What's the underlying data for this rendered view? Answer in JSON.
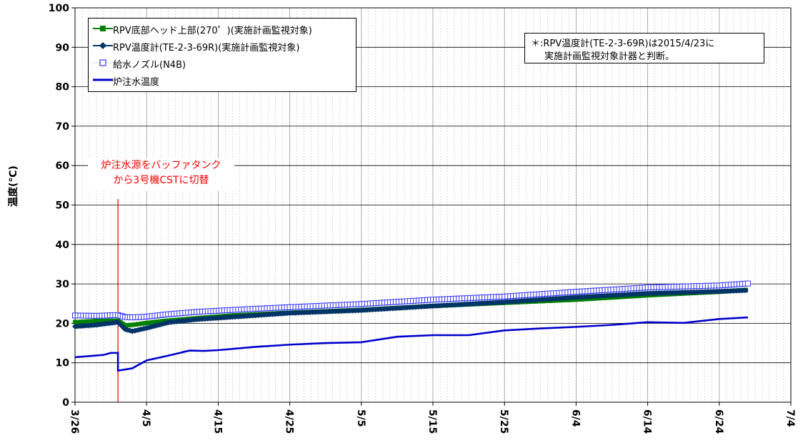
{
  "chart_data": {
    "type": "line",
    "ylabel": "温度(℃)",
    "ylim": [
      0,
      100
    ],
    "yticks": [
      "100",
      "90",
      "80",
      "70",
      "60",
      "50",
      "40",
      "30",
      "20",
      "10",
      "0"
    ],
    "xticks": [
      "3/26",
      "4/5",
      "4/15",
      "4/25",
      "5/5",
      "5/15",
      "5/25",
      "6/4",
      "6/14",
      "6/24",
      "7/4"
    ],
    "xlim": [
      "3/26",
      "7/4"
    ],
    "grid": true,
    "legend_position": "top-left",
    "series": [
      {
        "name": "RPV底部ヘッド上部(270゜)(実施計画監視対象)",
        "color": "#008000",
        "marker": "square",
        "x": [
          "3/26",
          "3/29",
          "4/1",
          "4/2",
          "4/3",
          "4/5",
          "4/8",
          "4/12",
          "4/17",
          "4/25",
          "5/5",
          "5/15",
          "5/25",
          "6/4",
          "6/14",
          "6/24",
          "6/28"
        ],
        "values": [
          20.3,
          20.6,
          20.7,
          19.5,
          19.6,
          20.1,
          20.7,
          21.3,
          22.0,
          22.7,
          23.4,
          24.4,
          25.2,
          26.0,
          27.1,
          28.0,
          28.5
        ]
      },
      {
        "name": "RPV温度計(TE-2-3-69R)(実施計画監視対象)",
        "color": "#003366",
        "marker": "diamond",
        "x": [
          "3/26",
          "3/29",
          "4/1",
          "4/2",
          "4/3",
          "4/5",
          "4/8",
          "4/12",
          "4/17",
          "4/25",
          "5/5",
          "5/15",
          "5/25",
          "6/4",
          "6/14",
          "6/24",
          "6/28"
        ],
        "values": [
          19.2,
          19.6,
          20.3,
          18.5,
          18.0,
          18.8,
          20.2,
          21.0,
          21.6,
          22.6,
          23.3,
          24.4,
          25.4,
          26.6,
          27.6,
          28.1,
          28.4
        ]
      },
      {
        "name": "給水ノズル(N4B)",
        "color": "#3333ff",
        "marker": "open-square",
        "x": [
          "3/26",
          "3/29",
          "4/1",
          "4/2",
          "4/3",
          "4/5",
          "4/8",
          "4/12",
          "4/17",
          "4/25",
          "5/5",
          "5/15",
          "5/25",
          "6/4",
          "6/14",
          "6/24",
          "6/28"
        ],
        "values": [
          22.0,
          21.9,
          22.1,
          21.6,
          21.5,
          21.7,
          22.3,
          22.9,
          23.4,
          24.1,
          24.9,
          26.0,
          26.8,
          28.0,
          29.1,
          29.6,
          30.1
        ]
      },
      {
        "name": "炉注水温度",
        "color": "#0000cc",
        "marker": "none",
        "x": [
          "3/26",
          "3/28",
          "3/30",
          "3/31",
          "4/1",
          "4/1",
          "4/3",
          "4/5",
          "4/8",
          "4/11",
          "4/13",
          "4/15",
          "4/20",
          "4/25",
          "4/30",
          "5/5",
          "5/10",
          "5/15",
          "5/20",
          "5/25",
          "5/30",
          "6/4",
          "6/9",
          "6/14",
          "6/19",
          "6/24",
          "6/28"
        ],
        "values": [
          11.4,
          11.7,
          12.0,
          12.5,
          12.5,
          8.0,
          8.6,
          10.6,
          11.8,
          13.1,
          13.0,
          13.2,
          14.0,
          14.6,
          15.0,
          15.2,
          16.6,
          17.0,
          17.0,
          18.2,
          18.7,
          19.1,
          19.6,
          20.3,
          20.1,
          21.1,
          21.5
        ]
      }
    ],
    "annotations": [
      {
        "type": "vline",
        "x": "4/1",
        "color": "#ff0000"
      }
    ]
  },
  "legend": {
    "items": [
      "RPV底部ヘッド上部(270゜)(実施計画監視対象)",
      "RPV温度計(TE-2-3-69R)(実施計画監視対象)",
      "給水ノズル(N4B)",
      "炉注水温度"
    ]
  },
  "note": {
    "line1": "＊:RPV温度計(TE-2-3-69R)は2015/4/23に",
    "line2": "実施計画監視対象計器と判断。"
  },
  "annotation": {
    "line1": "炉注水源をバッファタンク",
    "line2": "から3号機CSTに切替"
  }
}
